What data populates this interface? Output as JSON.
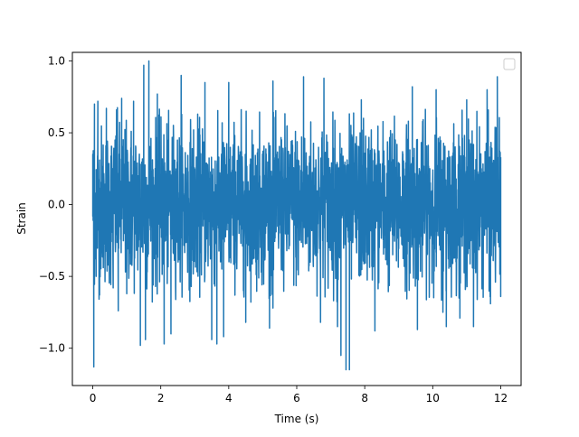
{
  "chart_data": {
    "type": "line",
    "title": "",
    "xlabel": "Time (s)",
    "ylabel": "Strain",
    "xlim": [
      -0.6,
      12.6
    ],
    "ylim": [
      -1.26,
      1.06
    ],
    "x_ticks": [
      0,
      2,
      4,
      6,
      8,
      10,
      12
    ],
    "x_tick_labels": [
      "0",
      "2",
      "4",
      "6",
      "8",
      "10",
      "12"
    ],
    "y_ticks": [
      -1.0,
      -0.5,
      0.0,
      0.5,
      1.0
    ],
    "y_tick_labels": [
      "−1.0",
      "−0.5",
      "0.0",
      "0.5",
      "1.0"
    ],
    "grid": false,
    "legend": {
      "placement": "top-right",
      "entries": []
    },
    "series": [
      {
        "color": "#1f77b4",
        "x_range": [
          0,
          12
        ],
        "description_of_values": "dense noisy signal roughly between -0.6 and 0.6 with spikes",
        "points": [
          [
            0.0,
            0.35
          ],
          [
            0.03,
            -1.13
          ],
          [
            0.05,
            0.7
          ],
          [
            0.1,
            -0.5
          ],
          [
            0.15,
            0.72
          ],
          [
            0.2,
            -0.63
          ],
          [
            0.4,
            0.67
          ],
          [
            0.6,
            -0.58
          ],
          [
            0.7,
            0.66
          ],
          [
            0.75,
            -0.74
          ],
          [
            0.85,
            0.74
          ],
          [
            1.0,
            -0.62
          ],
          [
            1.2,
            0.72
          ],
          [
            1.4,
            -0.98
          ],
          [
            1.5,
            0.97
          ],
          [
            1.55,
            -0.94
          ],
          [
            1.65,
            1.0
          ],
          [
            1.9,
            0.77
          ],
          [
            2.1,
            -0.97
          ],
          [
            2.3,
            -0.9
          ],
          [
            2.6,
            0.9
          ],
          [
            3.3,
            0.85
          ],
          [
            3.5,
            -0.94
          ],
          [
            3.65,
            -0.97
          ],
          [
            3.85,
            -0.92
          ],
          [
            4.0,
            0.85
          ],
          [
            4.5,
            -0.82
          ],
          [
            5.3,
            0.86
          ],
          [
            5.3,
            -0.72
          ],
          [
            5.2,
            -0.86
          ],
          [
            6.2,
            0.89
          ],
          [
            6.7,
            -0.82
          ],
          [
            6.8,
            0.88
          ],
          [
            7.2,
            -0.85
          ],
          [
            7.3,
            -1.05
          ],
          [
            7.45,
            -1.15
          ],
          [
            7.55,
            -1.15
          ],
          [
            7.9,
            0.73
          ],
          [
            8.3,
            -0.88
          ],
          [
            9.4,
            0.82
          ],
          [
            9.55,
            -0.87
          ],
          [
            10.1,
            0.8
          ],
          [
            10.3,
            -0.75
          ],
          [
            10.4,
            -0.85
          ],
          [
            10.8,
            -0.79
          ],
          [
            11.0,
            0.73
          ],
          [
            11.2,
            -0.85
          ],
          [
            11.6,
            0.8
          ],
          [
            11.7,
            -0.69
          ],
          [
            11.9,
            0.89
          ],
          [
            12.0,
            -0.64
          ],
          [
            12.0,
            0.33
          ]
        ]
      }
    ]
  }
}
